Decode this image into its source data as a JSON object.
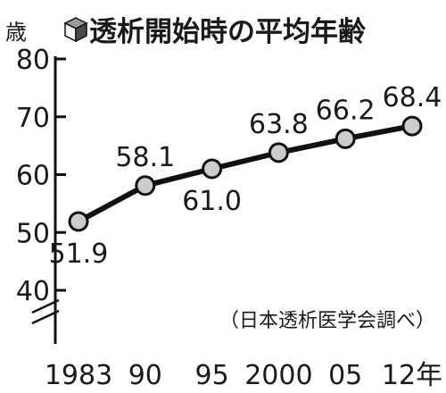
{
  "chart_data": {
    "type": "line",
    "title": "透析開始時の平均年齢",
    "unit_label": "歳",
    "source_note": "（日本透析医学会調べ）",
    "categories": [
      "1983",
      "90",
      "95",
      "2000",
      "05",
      "12年"
    ],
    "x": [
      1983,
      1990,
      1995,
      2000,
      2005,
      2012
    ],
    "series": [
      {
        "values": [
          51.9,
          58.1,
          61.0,
          63.8,
          66.2,
          68.4
        ]
      }
    ],
    "data_labels": [
      "51.9",
      "58.1",
      "61.0",
      "63.8",
      "66.2",
      "68.4"
    ],
    "yticks": [
      40,
      50,
      60,
      70,
      80
    ],
    "ytick_labels": [
      "40",
      "50",
      "60",
      "70",
      "80"
    ],
    "ylim": [
      35,
      80
    ],
    "y_axis_break": true,
    "grid": false,
    "title_icon": "cube-icon",
    "colors": {
      "line": "#111111",
      "marker_fill": "#cccccc",
      "marker_stroke": "#111111",
      "axis": "#111111"
    }
  }
}
